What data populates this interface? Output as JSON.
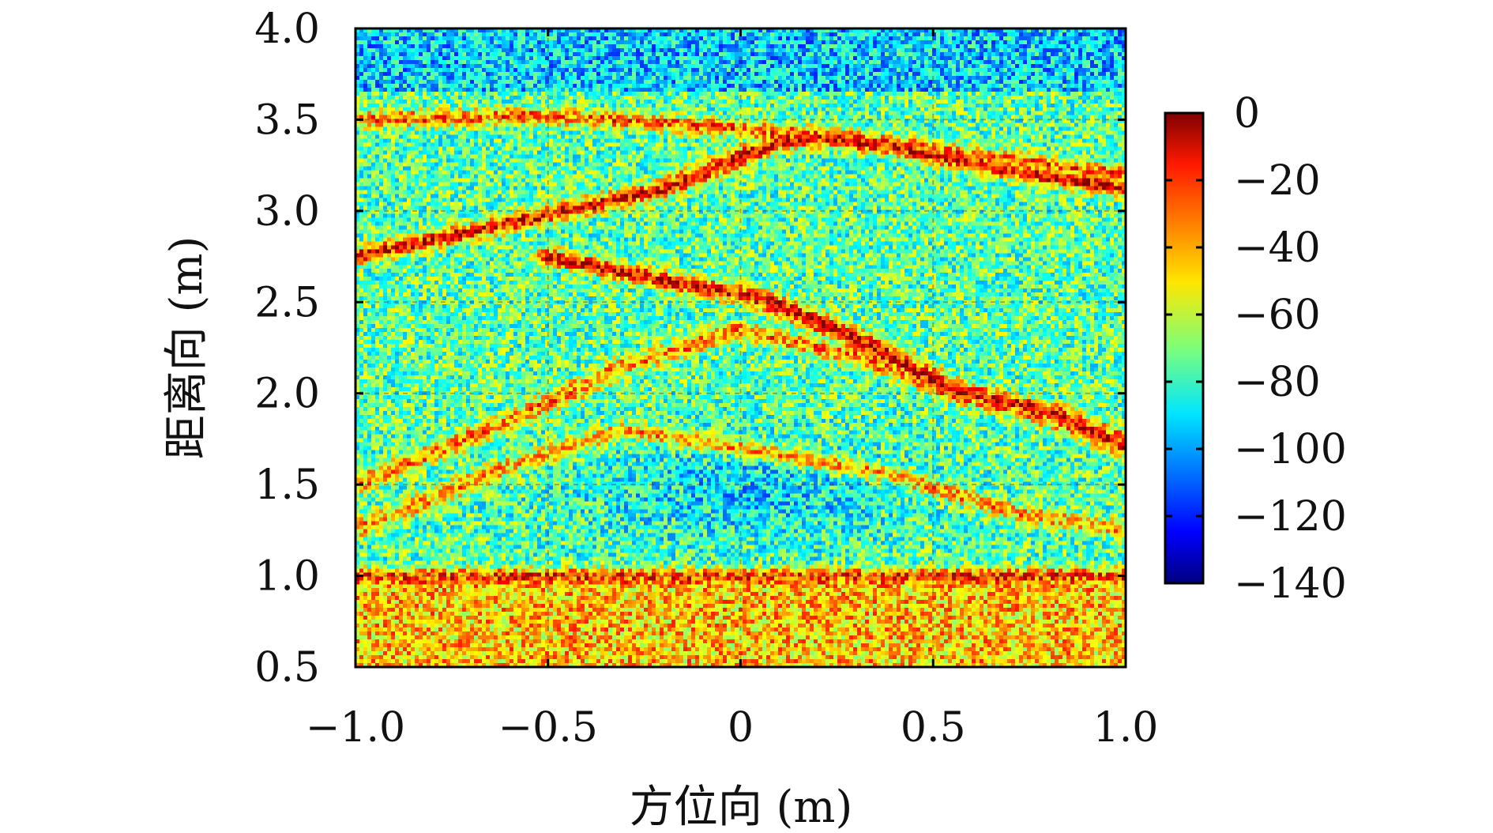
{
  "chart_data": {
    "type": "heatmap",
    "title": "",
    "xlabel": "方位向 (m)",
    "ylabel": "距离向 (m)",
    "xlim": [
      -1.0,
      1.0
    ],
    "ylim": [
      0.5,
      4.0
    ],
    "xticks": [
      -1.0,
      -0.5,
      0,
      0.5,
      1.0
    ],
    "xtick_labels": [
      "−1.0",
      "−0.5",
      "0",
      "0.5",
      "1.0"
    ],
    "yticks": [
      0.5,
      1.0,
      1.5,
      2.0,
      2.5,
      3.0,
      3.5,
      4.0
    ],
    "ytick_labels": [
      "0.5",
      "1.0",
      "1.5",
      "2.0",
      "2.5",
      "3.0",
      "3.5",
      "4.0"
    ],
    "grid": true,
    "colormap": "jet",
    "colorbar": {
      "range": [
        -140,
        0
      ],
      "ticks": [
        0,
        -20,
        -40,
        -60,
        -80,
        -100,
        -120,
        -140
      ],
      "tick_labels": [
        "0",
        "−20",
        "−40",
        "−60",
        "−80",
        "−100",
        "−120",
        "−140"
      ]
    },
    "background_level_db": -75,
    "features": [
      {
        "name": "upper arc",
        "points": [
          [
            -1.0,
            2.75
          ],
          [
            -0.5,
            2.98
          ],
          [
            -0.2,
            3.12
          ],
          [
            0.1,
            3.38
          ],
          [
            0.2,
            3.4
          ],
          [
            0.4,
            3.35
          ],
          [
            0.7,
            3.22
          ],
          [
            1.0,
            3.12
          ]
        ],
        "peak_db": -15
      },
      {
        "name": "arc 2",
        "points": [
          [
            -1.0,
            3.5
          ],
          [
            -0.5,
            3.52
          ],
          [
            0.0,
            3.45
          ],
          [
            0.25,
            3.4
          ],
          [
            0.5,
            3.33
          ],
          [
            1.0,
            3.2
          ]
        ],
        "peak_db": -30
      },
      {
        "name": "diagonal reflector",
        "points": [
          [
            -0.5,
            2.75
          ],
          [
            -0.2,
            2.62
          ],
          [
            0.05,
            2.52
          ],
          [
            0.3,
            2.3
          ],
          [
            0.55,
            2.02
          ],
          [
            0.8,
            1.9
          ],
          [
            1.0,
            1.7
          ]
        ],
        "peak_db": -12
      },
      {
        "name": "left arc",
        "points": [
          [
            -1.0,
            1.5
          ],
          [
            -0.6,
            1.85
          ],
          [
            -0.3,
            2.15
          ],
          [
            0.0,
            2.35
          ],
          [
            0.3,
            2.2
          ],
          [
            0.6,
            1.98
          ],
          [
            1.0,
            1.75
          ]
        ],
        "peak_db": -35
      },
      {
        "name": "lower arc",
        "points": [
          [
            -1.0,
            1.25
          ],
          [
            -0.6,
            1.6
          ],
          [
            -0.3,
            1.8
          ],
          [
            0.0,
            1.7
          ],
          [
            0.4,
            1.55
          ],
          [
            0.7,
            1.35
          ],
          [
            1.0,
            1.25
          ]
        ],
        "peak_db": -40
      },
      {
        "name": "ground line",
        "points": [
          [
            -1.0,
            1.0
          ],
          [
            1.0,
            1.0
          ]
        ],
        "peak_db": -25
      }
    ],
    "regions": [
      {
        "name": "far-range noise floor",
        "y_range": [
          3.65,
          4.0
        ],
        "level_db": -100
      },
      {
        "name": "shadow region",
        "center": [
          0.0,
          1.45
        ],
        "level_db": -95
      },
      {
        "name": "near-range clutter",
        "y_range": [
          0.5,
          1.0
        ],
        "level_db": -35
      }
    ]
  }
}
